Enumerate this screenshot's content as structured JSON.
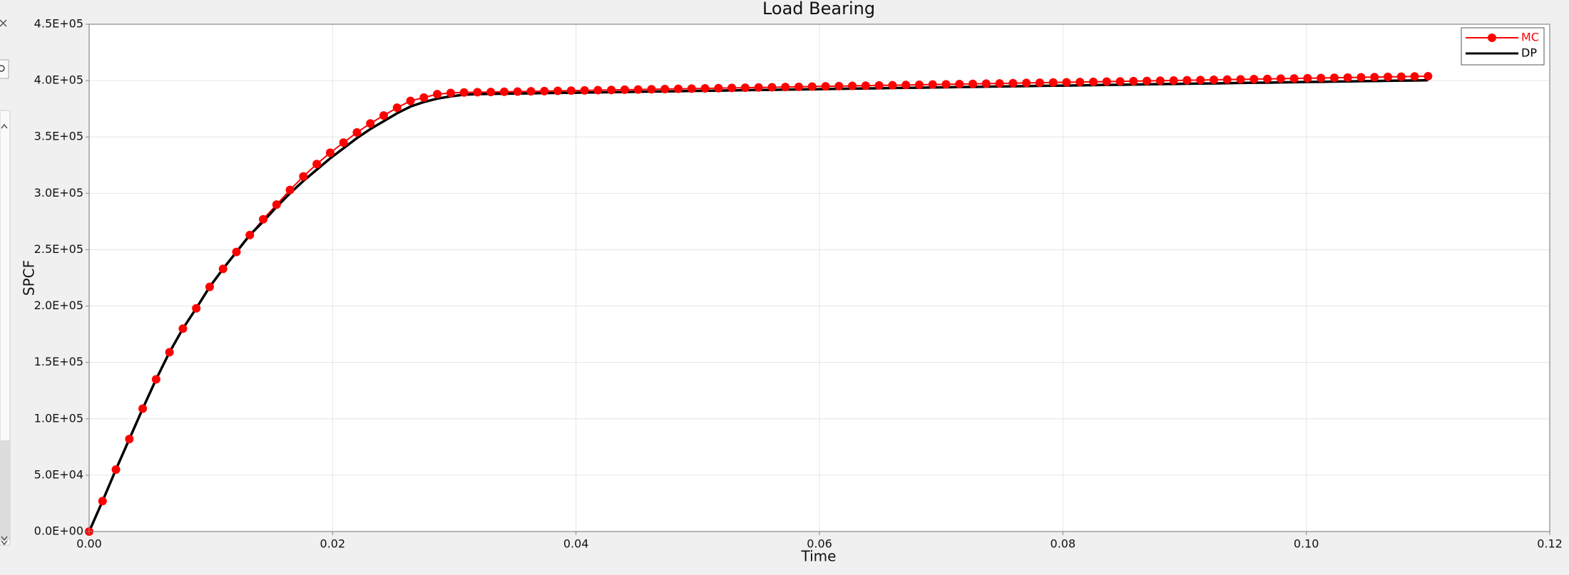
{
  "chart_data": {
    "type": "line",
    "title": "Load Bearing",
    "x_label": "Time",
    "y_label": "SPCF",
    "x": [
      0,
      0.0011,
      0.0022,
      0.0033,
      0.0044,
      0.0055,
      0.0066,
      0.0077,
      0.0088,
      0.0099,
      0.011,
      0.0121,
      0.0132,
      0.0143,
      0.0154,
      0.0165,
      0.0176,
      0.0187,
      0.0198,
      0.0209,
      0.022,
      0.0231,
      0.0242,
      0.0253,
      0.0264,
      0.0275,
      0.0286,
      0.0297,
      0.0308,
      0.0319,
      0.033,
      0.0341,
      0.0352,
      0.0363,
      0.0374,
      0.0385,
      0.0396,
      0.0407,
      0.0418,
      0.0429,
      0.044,
      0.0451,
      0.0462,
      0.0473,
      0.0484,
      0.0495,
      0.0506,
      0.0517,
      0.0528,
      0.0539,
      0.055,
      0.0561,
      0.0572,
      0.0583,
      0.0594,
      0.0605,
      0.0616,
      0.0627,
      0.0638,
      0.0649,
      0.066,
      0.0671,
      0.0682,
      0.0693,
      0.0704,
      0.0715,
      0.0726,
      0.0737,
      0.0748,
      0.0759,
      0.077,
      0.0781,
      0.0792,
      0.0803,
      0.0814,
      0.0825,
      0.0836,
      0.0847,
      0.0858,
      0.0869,
      0.088,
      0.0891,
      0.0902,
      0.0913,
      0.0924,
      0.0935,
      0.0946,
      0.0957,
      0.0968,
      0.0979,
      0.099,
      0.1001,
      0.1012,
      0.1023,
      0.1034,
      0.1045,
      0.1056,
      0.1067,
      0.1078,
      0.1089,
      0.11
    ],
    "series": [
      {
        "name": "MC",
        "color": "#ff0000",
        "markers": true,
        "values": [
          0,
          27000,
          55000,
          82000,
          109000,
          135000,
          159000,
          180000,
          198000,
          217000,
          233000,
          248000,
          263000,
          277000,
          290000,
          303000,
          315000,
          326000,
          336000,
          345000,
          354000,
          362000,
          369000,
          376000,
          382000,
          385000,
          388000,
          389000,
          389500,
          389700,
          389900,
          390100,
          390300,
          390500,
          390700,
          390900,
          391100,
          391300,
          391500,
          391700,
          391900,
          392100,
          392300,
          392500,
          392700,
          392900,
          393100,
          393300,
          393500,
          393700,
          393900,
          394100,
          394300,
          394500,
          394700,
          394900,
          395100,
          395300,
          395500,
          395700,
          395900,
          396100,
          396300,
          396500,
          396700,
          396900,
          397100,
          397300,
          397500,
          397700,
          397900,
          398100,
          398300,
          398500,
          398700,
          398900,
          399100,
          399300,
          399500,
          399700,
          399900,
          400100,
          400300,
          400500,
          400700,
          400900,
          401100,
          401300,
          401500,
          401700,
          401900,
          402100,
          402300,
          402500,
          402700,
          402900,
          403100,
          403300,
          403500,
          403700,
          403900
        ]
      },
      {
        "name": "DP",
        "color": "#000000",
        "markers": false,
        "values": [
          0,
          27000,
          55000,
          82000,
          109000,
          135000,
          159000,
          180000,
          198000,
          217000,
          233000,
          248000,
          263000,
          275000,
          288000,
          300000,
          311000,
          321000,
          331000,
          340000,
          349000,
          357000,
          364000,
          371000,
          377000,
          381000,
          384000,
          386000,
          387500,
          388000,
          388200,
          388400,
          388500,
          388700,
          388900,
          389100,
          389200,
          389400,
          389600,
          389700,
          389900,
          390100,
          390300,
          390400,
          390600,
          390800,
          391000,
          391100,
          391300,
          391500,
          391700,
          391800,
          392000,
          392200,
          392300,
          392500,
          392700,
          392900,
          393000,
          393200,
          393400,
          393600,
          393700,
          393900,
          394100,
          394300,
          394400,
          394600,
          394800,
          394900,
          395100,
          395300,
          395500,
          395600,
          395800,
          396000,
          396200,
          396300,
          396500,
          396700,
          396900,
          397000,
          397200,
          397400,
          397500,
          397700,
          397900,
          398100,
          398200,
          398400,
          398600,
          398800,
          398900,
          399100,
          399300,
          399500,
          399600,
          399800,
          400000,
          400100,
          400300
        ]
      }
    ],
    "xlim": [
      0,
      0.12
    ],
    "xticks": [
      {
        "value": 0,
        "label": "0.00"
      },
      0.02,
      0.04,
      0.06,
      0.08,
      {
        "value": 0.1,
        "label": "0.10"
      },
      0.12
    ],
    "ylim": [
      0,
      450000
    ],
    "yticks": [
      {
        "value": 0,
        "label": "0.0E+00"
      },
      {
        "value": 50000,
        "label": "5.0E+04"
      },
      {
        "value": 100000,
        "label": "1.0E+05"
      },
      {
        "value": 150000,
        "label": "1.5E+05"
      },
      {
        "value": 200000,
        "label": "2.0E+05"
      },
      {
        "value": 250000,
        "label": "2.5E+05"
      },
      {
        "value": 300000,
        "label": "3.0E+05"
      },
      {
        "value": 350000,
        "label": "3.5E+05"
      },
      {
        "value": 400000,
        "label": "4.0E+05"
      },
      {
        "value": 450000,
        "label": "4.5E+05"
      }
    ],
    "grid": true,
    "legend_position": "upper right"
  }
}
